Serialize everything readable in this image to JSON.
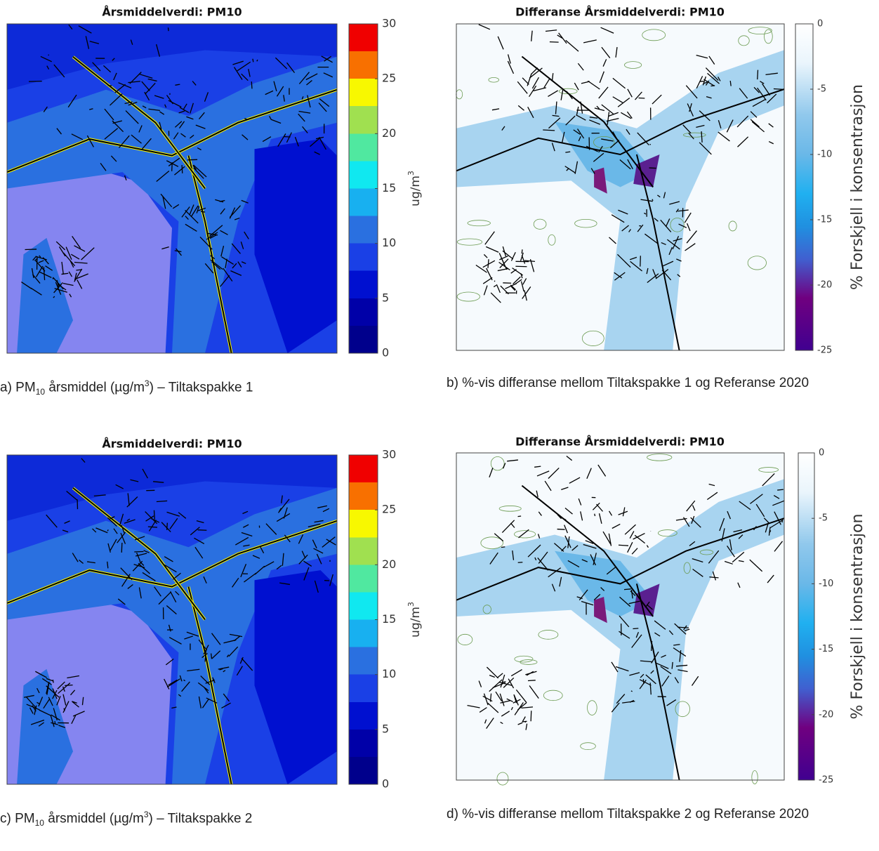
{
  "panels": [
    {
      "title": "Årsmiddelverdi: PM10",
      "colorbar": {
        "range": [
          0,
          30
        ],
        "ticks": [
          0,
          5,
          10,
          15,
          20,
          25,
          30
        ],
        "label": [
          "ug/m",
          "3"
        ]
      },
      "caption": [
        "a) PM",
        "10",
        " årsmiddel (µg/m",
        "3",
        ") – Tiltakspakke 1"
      ]
    },
    {
      "title": "Differanse Årsmiddelverdi: PM10",
      "colorbar": {
        "range": [
          -25,
          0
        ],
        "ticks": [
          0,
          -5,
          -10,
          -15,
          -20,
          -25
        ],
        "label": [
          "% Forskjell i konsentrasjon"
        ]
      },
      "caption": [
        "b) %-vis differanse mellom Tiltakspakke 1 og Referanse 2020"
      ]
    },
    {
      "title": "Årsmiddelverdi: PM10",
      "colorbar": {
        "range": [
          0,
          30
        ],
        "ticks": [
          0,
          5,
          10,
          15,
          20,
          25,
          30
        ],
        "label": [
          "ug/m",
          "3"
        ]
      },
      "caption": [
        "c) PM",
        "10",
        " årsmiddel (µg/m",
        "3",
        ") – Tiltakspakke 2"
      ]
    },
    {
      "title": "Differanse Årsmiddelverdi: PM10",
      "colorbar": {
        "range": [
          -25,
          0
        ],
        "ticks": [
          0,
          -5,
          -10,
          -15,
          -20,
          -25
        ],
        "label": [
          "% Forskjell i konsentrasjon"
        ]
      },
      "caption": [
        "d) %-vis differanse mellom Tiltakspakke 2 og Referanse 2020"
      ]
    }
  ]
}
